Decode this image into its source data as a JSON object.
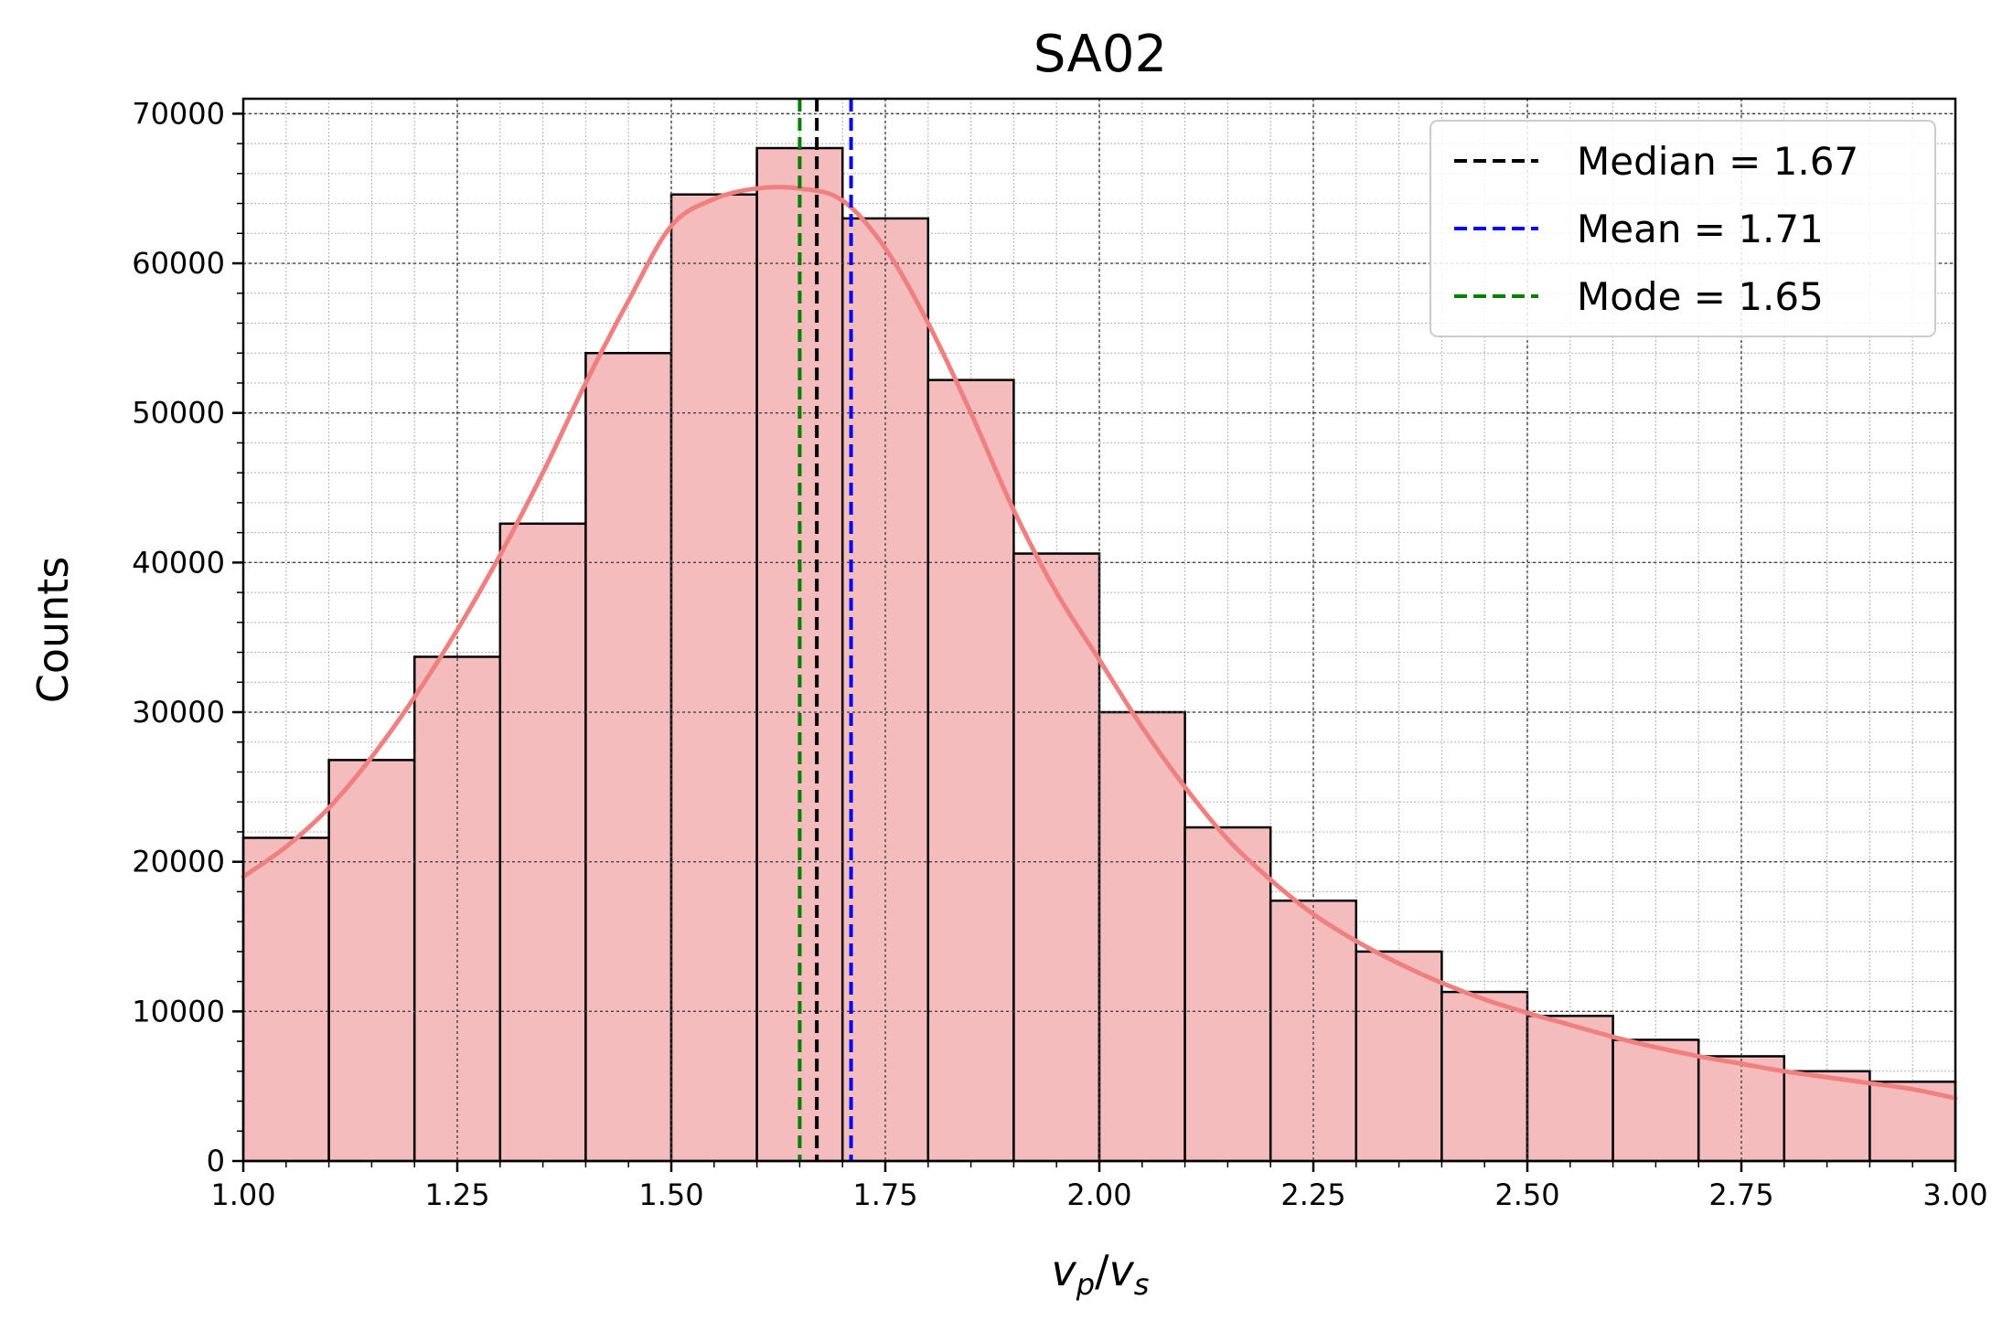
{
  "chart_data": {
    "type": "bar",
    "title": "SA02",
    "xlabel_parts": [
      "v",
      "p",
      "/",
      "v",
      "s"
    ],
    "ylabel": "Counts",
    "xlim": [
      1.0,
      3.0
    ],
    "ylim": [
      0,
      71000
    ],
    "x_ticks": [
      "1.00",
      "1.25",
      "1.50",
      "1.75",
      "2.00",
      "2.25",
      "2.50",
      "2.75",
      "3.00"
    ],
    "y_ticks": [
      "0",
      "10000",
      "20000",
      "30000",
      "40000",
      "50000",
      "60000",
      "70000"
    ],
    "grid": true,
    "legend_position": "top-right",
    "bin_width": 0.1,
    "bins_start": [
      1.0,
      1.1,
      1.2,
      1.3,
      1.4,
      1.5,
      1.6,
      1.7,
      1.8,
      1.9,
      2.0,
      2.1,
      2.2,
      2.3,
      2.4,
      2.5,
      2.6,
      2.7,
      2.8,
      2.9
    ],
    "values": [
      21600,
      26800,
      33700,
      42600,
      54000,
      64600,
      67700,
      63000,
      52200,
      40600,
      30000,
      22300,
      17400,
      14000,
      11300,
      9700,
      8100,
      7000,
      6000,
      5300
    ],
    "bar_fill": "#f4bcbc",
    "bar_edge": "#000000",
    "kde": {
      "name": "KDE",
      "color": "#f08080",
      "x": [
        1.0,
        1.05,
        1.1,
        1.15,
        1.2,
        1.25,
        1.3,
        1.35,
        1.4,
        1.45,
        1.5,
        1.55,
        1.6,
        1.65,
        1.7,
        1.75,
        1.8,
        1.85,
        1.9,
        1.95,
        2.0,
        2.05,
        2.1,
        2.15,
        2.2,
        2.25,
        2.3,
        2.35,
        2.4,
        2.45,
        2.5,
        2.55,
        2.6,
        2.65,
        2.7,
        2.75,
        2.8,
        2.85,
        2.9,
        2.95,
        3.0
      ],
      "y": [
        19000,
        21000,
        23600,
        27000,
        31000,
        35500,
        40500,
        46000,
        52000,
        57500,
        62500,
        64300,
        65000,
        65000,
        64200,
        61000,
        56000,
        50000,
        43500,
        38000,
        33500,
        29000,
        25000,
        21500,
        18800,
        16500,
        14700,
        13200,
        11900,
        10800,
        9900,
        9100,
        8300,
        7600,
        7000,
        6500,
        6000,
        5600,
        5200,
        4800,
        4200
      ]
    },
    "vlines": [
      {
        "label": "Median = 1.67",
        "x": 1.67,
        "color": "#000000"
      },
      {
        "label": "Mean = 1.71",
        "x": 1.71,
        "color": "#0000ff"
      },
      {
        "label": "Mode = 1.65",
        "x": 1.65,
        "color": "#008000"
      }
    ]
  }
}
